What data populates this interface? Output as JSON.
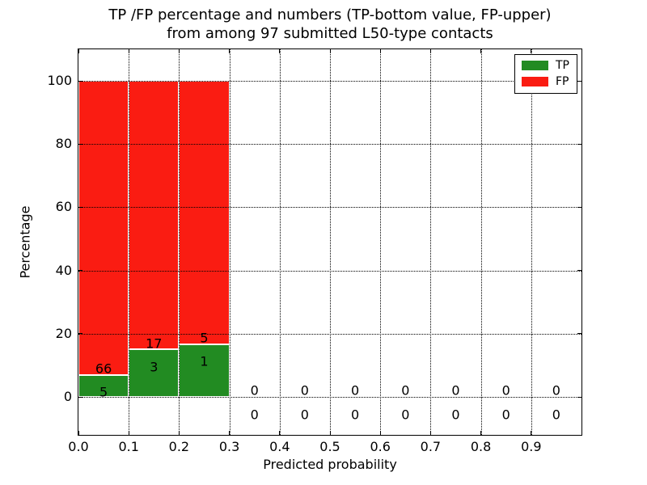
{
  "chart_data": {
    "type": "bar",
    "stacked": true,
    "title_line1": "TP /FP percentage and numbers (TP-bottom value, FP-upper)",
    "title_line2": "from among 97 submitted L50-type contacts",
    "xlabel": "Predicted probability",
    "ylabel": "Percentage",
    "total_contacts": 97,
    "xlim": [
      0,
      1.0
    ],
    "ylim": [
      -12,
      110
    ],
    "xtick_values": [
      0.0,
      0.1,
      0.2,
      0.3,
      0.4,
      0.5,
      0.6,
      0.7,
      0.8,
      0.9
    ],
    "xtick_labels": [
      "0.0",
      "0.1",
      "0.2",
      "0.3",
      "0.4",
      "0.5",
      "0.6",
      "0.7",
      "0.8",
      "0.9"
    ],
    "ytick_values": [
      0,
      20,
      40,
      60,
      80,
      100
    ],
    "ytick_labels": [
      "0",
      "20",
      "40",
      "60",
      "80",
      "100"
    ],
    "grid": "dotted",
    "colors": {
      "tp": "#228b22",
      "fp": "#fa1c12",
      "axis": "#000000",
      "background": "#ffffff"
    },
    "legend": [
      {
        "label": "TP",
        "color": "#228b22"
      },
      {
        "label": "FP",
        "color": "#fa1c12"
      }
    ],
    "bins": [
      {
        "x0": 0.0,
        "x1": 0.1,
        "tp": 5,
        "fp": 66,
        "tp_pct": 7.04,
        "fp_pct": 92.96
      },
      {
        "x0": 0.1,
        "x1": 0.2,
        "tp": 3,
        "fp": 17,
        "tp_pct": 15.0,
        "fp_pct": 85.0
      },
      {
        "x0": 0.2,
        "x1": 0.3,
        "tp": 1,
        "fp": 5,
        "tp_pct": 16.67,
        "fp_pct": 83.33
      },
      {
        "x0": 0.3,
        "x1": 0.4,
        "tp": 0,
        "fp": 0,
        "tp_pct": 0,
        "fp_pct": 0
      },
      {
        "x0": 0.4,
        "x1": 0.5,
        "tp": 0,
        "fp": 0,
        "tp_pct": 0,
        "fp_pct": 0
      },
      {
        "x0": 0.5,
        "x1": 0.6,
        "tp": 0,
        "fp": 0,
        "tp_pct": 0,
        "fp_pct": 0
      },
      {
        "x0": 0.6,
        "x1": 0.7,
        "tp": 0,
        "fp": 0,
        "tp_pct": 0,
        "fp_pct": 0
      },
      {
        "x0": 0.7,
        "x1": 0.8,
        "tp": 0,
        "fp": 0,
        "tp_pct": 0,
        "fp_pct": 0
      },
      {
        "x0": 0.8,
        "x1": 0.9,
        "tp": 0,
        "fp": 0,
        "tp_pct": 0,
        "fp_pct": 0
      },
      {
        "x0": 0.9,
        "x1": 1.0,
        "tp": 0,
        "fp": 0,
        "tp_pct": 0,
        "fp_pct": 0
      }
    ]
  }
}
